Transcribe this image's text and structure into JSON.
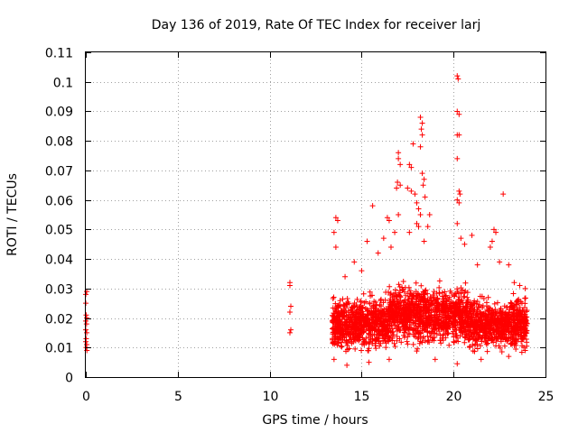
{
  "chart_data": {
    "type": "scatter",
    "title": "Day 136 of 2019, Rate Of TEC Index for receiver larj",
    "xlabel": "GPS time / hours",
    "ylabel": "ROTI / TECUs",
    "xlim": [
      0,
      25
    ],
    "ylim": [
      0,
      0.11
    ],
    "x_ticks": [
      0,
      5,
      10,
      15,
      20,
      25
    ],
    "x_tick_labels": [
      "0",
      "5",
      "10",
      "15",
      "20",
      "25"
    ],
    "y_ticks": [
      0,
      0.01,
      0.02,
      0.03,
      0.04,
      0.05,
      0.06,
      0.07,
      0.08,
      0.09,
      0.1,
      0.11
    ],
    "y_tick_labels": [
      "0",
      "0.01",
      "0.02",
      "0.03",
      "0.04",
      "0.05",
      "0.06",
      "0.07",
      "0.08",
      "0.09",
      "0.1",
      "0.11"
    ],
    "grid": true,
    "marker": "+",
    "color": "#ff0000",
    "series": [
      {
        "name": "ROTI",
        "points": [
          [
            0.0,
            0.028
          ],
          [
            0.05,
            0.029
          ],
          [
            0.0,
            0.025
          ],
          [
            0.02,
            0.021
          ],
          [
            0.05,
            0.02
          ],
          [
            0.0,
            0.019
          ],
          [
            0.04,
            0.018
          ],
          [
            0.0,
            0.016
          ],
          [
            0.05,
            0.015
          ],
          [
            0.02,
            0.013
          ],
          [
            0.0,
            0.012
          ],
          [
            0.05,
            0.011
          ],
          [
            0.02,
            0.01
          ],
          [
            0.06,
            0.009
          ],
          [
            11.1,
            0.032
          ],
          [
            11.1,
            0.031
          ],
          [
            11.15,
            0.024
          ],
          [
            11.1,
            0.022
          ],
          [
            11.15,
            0.016
          ],
          [
            11.1,
            0.015
          ],
          [
            13.6,
            0.054
          ],
          [
            13.7,
            0.053
          ],
          [
            13.5,
            0.049
          ],
          [
            13.6,
            0.044
          ],
          [
            14.1,
            0.034
          ],
          [
            14.6,
            0.039
          ],
          [
            15.0,
            0.036
          ],
          [
            15.6,
            0.058
          ],
          [
            15.3,
            0.046
          ],
          [
            15.9,
            0.042
          ],
          [
            16.2,
            0.047
          ],
          [
            16.4,
            0.054
          ],
          [
            16.5,
            0.053
          ],
          [
            16.8,
            0.049
          ],
          [
            16.6,
            0.044
          ],
          [
            17.0,
            0.076
          ],
          [
            17.0,
            0.074
          ],
          [
            17.1,
            0.072
          ],
          [
            16.95,
            0.066
          ],
          [
            16.9,
            0.064
          ],
          [
            17.1,
            0.065
          ],
          [
            17.0,
            0.055
          ],
          [
            17.6,
            0.072
          ],
          [
            17.7,
            0.071
          ],
          [
            17.5,
            0.064
          ],
          [
            17.7,
            0.063
          ],
          [
            17.6,
            0.049
          ],
          [
            17.8,
            0.079
          ],
          [
            18.2,
            0.088
          ],
          [
            18.3,
            0.086
          ],
          [
            18.25,
            0.084
          ],
          [
            18.3,
            0.082
          ],
          [
            18.2,
            0.078
          ],
          [
            17.9,
            0.062
          ],
          [
            18.0,
            0.059
          ],
          [
            18.1,
            0.057
          ],
          [
            18.3,
            0.069
          ],
          [
            18.4,
            0.067
          ],
          [
            18.35,
            0.065
          ],
          [
            18.45,
            0.061
          ],
          [
            18.2,
            0.055
          ],
          [
            18.0,
            0.052
          ],
          [
            18.1,
            0.051
          ],
          [
            18.6,
            0.051
          ],
          [
            18.4,
            0.046
          ],
          [
            18.7,
            0.055
          ],
          [
            20.2,
            0.102
          ],
          [
            20.25,
            0.101
          ],
          [
            20.2,
            0.09
          ],
          [
            20.3,
            0.089
          ],
          [
            20.2,
            0.082
          ],
          [
            20.3,
            0.082
          ],
          [
            20.2,
            0.074
          ],
          [
            20.3,
            0.063
          ],
          [
            20.35,
            0.062
          ],
          [
            20.2,
            0.06
          ],
          [
            20.3,
            0.059
          ],
          [
            20.2,
            0.052
          ],
          [
            20.4,
            0.047
          ],
          [
            20.6,
            0.045
          ],
          [
            21.0,
            0.048
          ],
          [
            21.3,
            0.038
          ],
          [
            22.0,
            0.044
          ],
          [
            22.2,
            0.05
          ],
          [
            22.3,
            0.049
          ],
          [
            22.1,
            0.046
          ],
          [
            22.5,
            0.039
          ],
          [
            22.7,
            0.062
          ],
          [
            23.0,
            0.038
          ],
          [
            23.3,
            0.032
          ],
          [
            23.6,
            0.031
          ],
          [
            23.9,
            0.03
          ],
          [
            13.5,
            0.006
          ],
          [
            14.2,
            0.004
          ],
          [
            15.4,
            0.005
          ],
          [
            16.5,
            0.006
          ],
          [
            19.0,
            0.006
          ],
          [
            20.2,
            0.0045
          ],
          [
            21.5,
            0.006
          ],
          [
            23.0,
            0.007
          ],
          [
            23.9,
            0.009
          ]
        ]
      }
    ],
    "dense_region": {
      "x_from": 13.4,
      "x_to": 24.0,
      "y_mid": 0.018,
      "y_spread": 0.017
    }
  }
}
